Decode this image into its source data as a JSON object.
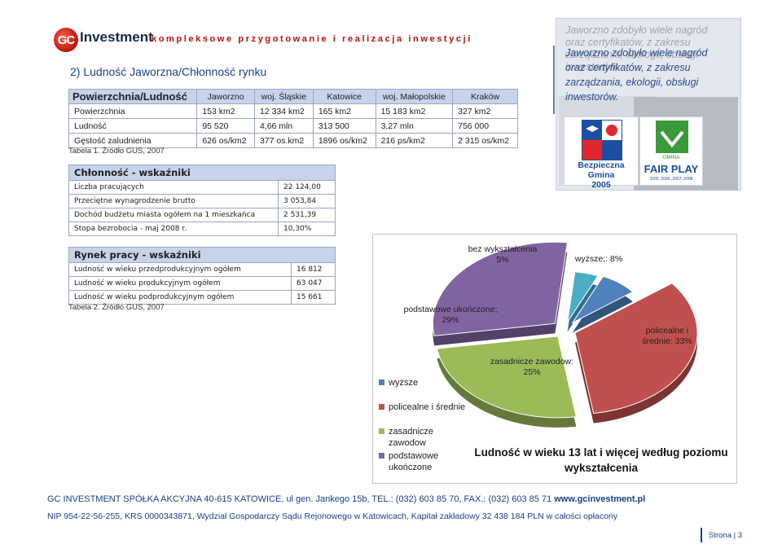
{
  "header": {
    "logo_mark": "GC",
    "logo_word": "Investment",
    "tagline": "kompleksowe przygotowanie i realizacja inwestycji"
  },
  "section_title": "2)  Ludność Jaworzna/Chłonność rynku",
  "table1": {
    "columns": [
      "Powierzchnia/Ludność",
      "Jaworzno",
      "woj. Śląskie",
      "Katowice",
      "woj. Małopolskie",
      "Kraków"
    ],
    "rows": [
      [
        "Powierzchnia",
        "153 km2",
        "12 334 km2",
        "165 km2",
        "15 183 km2",
        "327 km2"
      ],
      [
        "Ludność",
        "95 520",
        "4,66 mln",
        "313 500",
        "3,27 mln",
        "756 000"
      ],
      [
        "Gęstość zaludnienia",
        "626 os/km2",
        "377 os.km2",
        "1896 os/km2",
        "216 ps/km2",
        "2 315 os/km2"
      ]
    ],
    "source": "Tabela 1. Źródło GUS, 2007"
  },
  "table2": {
    "caption": "Chłonność - wskaźniki",
    "rows": [
      [
        "Liczba pracujących",
        "22 124,00"
      ],
      [
        "Przeciętne wynagrodzenie brutto",
        "3 053,84"
      ],
      [
        "Dochód budżetu miasta ogółem na 1 mieszkańca",
        "2 531,39"
      ],
      [
        "Stopa bezrobocia - maj 2008 r.",
        "10,30%"
      ]
    ]
  },
  "table3": {
    "caption": "Rynek pracy - wskaźniki",
    "rows": [
      [
        "Ludność w wieku przedprodukcyjnym ogółem",
        "16 812"
      ],
      [
        "Ludność w wieku produkcyjnym ogółem",
        "63 047"
      ],
      [
        "Ludność w wieku podprodukcyjnym ogółem",
        "15 661"
      ]
    ],
    "source": "Tabela 2. Źródło GUS, 2007"
  },
  "awards": {
    "ghost_text": "Jaworzno zdobyło wiele nagród oraz certyfikatów, z zakresu zarządzania, ekologii, obsługi inwestorów.",
    "text": "Jaworzno zdobyło wiele nagród oraz certyfikatów, z zakresu zarządzania, ekologii, obsługi inwestorów.",
    "badge1": {
      "label_line1": "Bezpieczna Gmina",
      "label_line2": "2005"
    },
    "badge2": {
      "top": "GMINA",
      "label": "FAIR PLAY",
      "years": "2005, 2006, 2007, 2008"
    }
  },
  "chart_data": {
    "type": "pie",
    "title": "Ludność w wieku 13 lat i więcej według poziomu wykształcenia",
    "slices": [
      {
        "label": "bez wykształcenia",
        "value": 5,
        "data_label": "bez wykształcenia 5%",
        "color": "#4bacc6"
      },
      {
        "label": "wyższe",
        "value": 8,
        "data_label": "wyższe;: 8%",
        "color": "#4f81bd"
      },
      {
        "label": "policealne i średnie",
        "value": 33,
        "data_label": "policealne i średnie: 33%",
        "color": "#c0504d"
      },
      {
        "label": "zasadnicze zawodowe",
        "value": 25,
        "data_label": "zasadnicze zawodow: 25%",
        "color": "#9bbb59"
      },
      {
        "label": "podstawowe ukończone",
        "value": 29,
        "data_label": "podstawowe ukończone; 29%",
        "color": "#8064a2"
      }
    ],
    "legend": [
      {
        "label": "wyższe",
        "color": "#4f81bd"
      },
      {
        "label": "policealne i średnie",
        "color": "#c0504d"
      },
      {
        "label": "zasadnicze zawodow",
        "color": "#9bbb59"
      },
      {
        "label": "podstawowe ukończone",
        "color": "#8064a2"
      }
    ],
    "legend_placement": "left"
  },
  "footer": {
    "line1_company": "GC INVESTMENT SPÓŁKA AKCYJNA",
    "line1_rest": " 40-615 KATOWICE, ul gen. Jankego 15b, TEL.: (032) 603 85 70,  FAX.: (032) 603 85 71  ",
    "line1_web": "www.gcinvestment.pl",
    "line2": "NIP 954-22-56-255, KRS 0000343871, Wydział Gospodarczy Sądu Rejonowego w Katowicach, Kapitał zakładowy 32 438 184 PLN w całości opłacony",
    "page": "Strona | 3"
  }
}
